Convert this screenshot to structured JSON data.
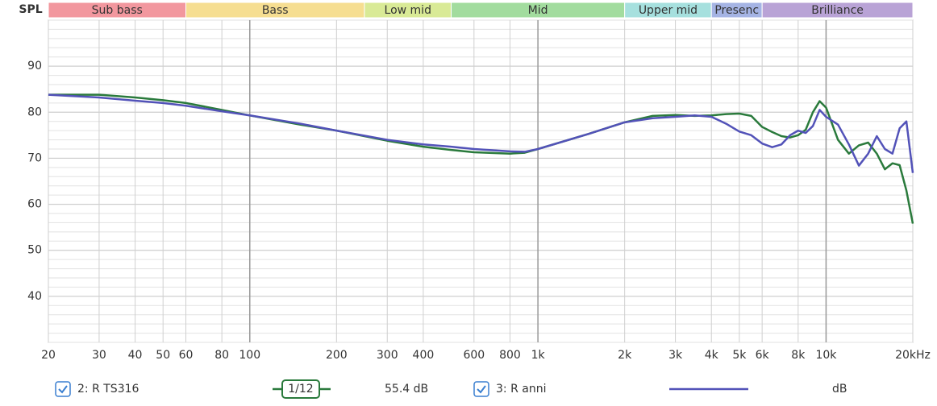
{
  "chart_data": {
    "type": "line",
    "ylabel": "SPL",
    "log_x": true,
    "grid": true,
    "ygrid_minor_step": 2,
    "xlim": [
      20,
      20000
    ],
    "ylim": [
      30,
      100
    ],
    "xticks": [
      20,
      30,
      40,
      50,
      60,
      80,
      100,
      200,
      300,
      400,
      600,
      800,
      {
        "value": 1000,
        "label": "1k"
      },
      {
        "value": 2000,
        "label": "2k"
      },
      {
        "value": 3000,
        "label": "3k"
      },
      {
        "value": 4000,
        "label": "4k"
      },
      {
        "value": 5000,
        "label": "5k"
      },
      {
        "value": 6000,
        "label": "6k"
      },
      {
        "value": 8000,
        "label": "8k"
      },
      {
        "value": 10000,
        "label": "10k"
      },
      {
        "value": 20000,
        "label": "20kHz"
      }
    ],
    "yticks": [
      40,
      50,
      60,
      70,
      80,
      90
    ],
    "bands": [
      {
        "label": "Sub bass",
        "start": 20,
        "end": 60,
        "color": "#f2979e"
      },
      {
        "label": "Bass",
        "start": 60,
        "end": 250,
        "color": "#f6de91"
      },
      {
        "label": "Low mid",
        "start": 250,
        "end": 500,
        "color": "#d9ea96"
      },
      {
        "label": "Mid",
        "start": 500,
        "end": 2000,
        "color": "#a2dc9e"
      },
      {
        "label": "Upper mid",
        "start": 2000,
        "end": 4000,
        "color": "#a6e0de"
      },
      {
        "label": "Presenc",
        "start": 4000,
        "end": 6000,
        "color": "#a5b4e4"
      },
      {
        "label": "Brilliance",
        "start": 6000,
        "end": 20000,
        "color": "#b9a3d6"
      }
    ],
    "x": [
      20,
      30,
      40,
      50,
      60,
      80,
      100,
      150,
      200,
      300,
      400,
      500,
      600,
      800,
      900,
      1000,
      1500,
      2000,
      2500,
      3000,
      3500,
      4000,
      4500,
      5000,
      5500,
      6000,
      6500,
      7000,
      7500,
      8000,
      8500,
      9000,
      9500,
      10000,
      11000,
      12000,
      13000,
      14000,
      15000,
      16000,
      17000,
      18000,
      19000,
      20000
    ],
    "series": [
      {
        "name": "2: R TS316",
        "color": "#2a7a3c",
        "smoothing": "1/12",
        "readout": "55.4 dB",
        "values": [
          83.8,
          83.8,
          83.2,
          82.6,
          82.0,
          80.5,
          79.3,
          77.3,
          76.0,
          73.8,
          72.5,
          71.8,
          71.3,
          71.0,
          71.2,
          72.0,
          75.3,
          77.8,
          79.2,
          79.4,
          79.2,
          79.3,
          79.6,
          79.7,
          79.2,
          76.8,
          75.7,
          74.8,
          74.5,
          75.0,
          76.2,
          80.0,
          82.4,
          81.0,
          74.0,
          71.0,
          72.8,
          73.4,
          71.0,
          67.6,
          68.9,
          68.5,
          63.0,
          55.8
        ]
      },
      {
        "name": "3: R anni",
        "color": "#5252b8",
        "readout": "dB",
        "values": [
          83.8,
          83.2,
          82.5,
          82.0,
          81.4,
          80.2,
          79.3,
          77.5,
          76.0,
          74.0,
          73.0,
          72.5,
          72.0,
          71.5,
          71.4,
          72.0,
          75.3,
          77.8,
          78.7,
          79.0,
          79.3,
          79.0,
          77.5,
          75.8,
          75.0,
          73.2,
          72.4,
          73.0,
          75.0,
          76.0,
          75.5,
          77.0,
          80.5,
          79.0,
          77.3,
          73.0,
          68.4,
          71.0,
          74.8,
          72.0,
          71.0,
          76.5,
          78.0,
          66.8
        ]
      }
    ]
  }
}
